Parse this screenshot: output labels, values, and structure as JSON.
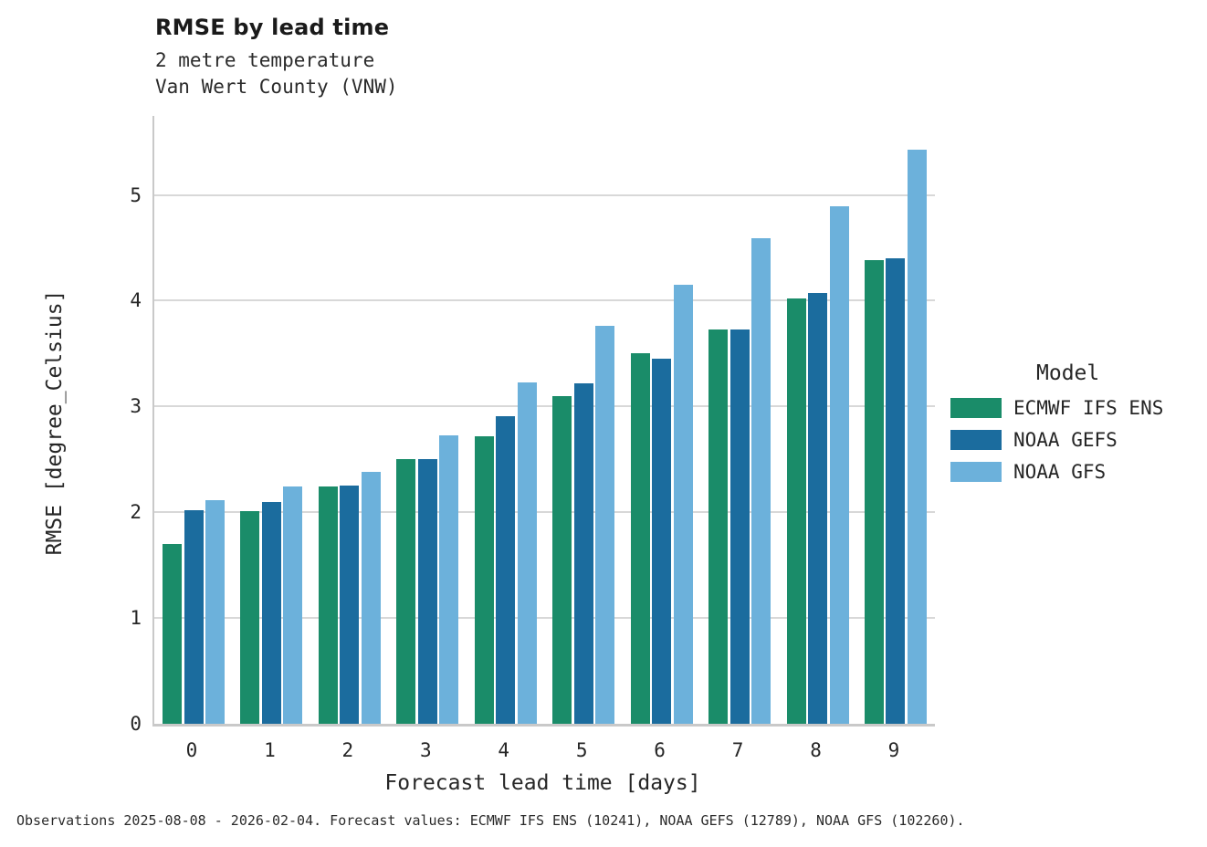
{
  "header": {
    "title": "RMSE by lead time",
    "subtitle_line1": "2 metre temperature",
    "subtitle_line2": "Van Wert County (VNW)"
  },
  "caption": "Observations 2025-08-08 - 2026-02-04. Forecast values: ECMWF IFS ENS (10241), NOAA GEFS (12789), NOAA GFS (102260).",
  "legend": {
    "title": "Model"
  },
  "chart_data": {
    "type": "bar",
    "title": "RMSE by lead time",
    "subtitle": "2 metre temperature — Van Wert County (VNW)",
    "xlabel": "Forecast lead time [days]",
    "ylabel": "RMSE [degree_Celsius]",
    "categories": [
      0,
      1,
      2,
      3,
      4,
      5,
      6,
      7,
      8,
      9
    ],
    "yticks": [
      0,
      1,
      2,
      3,
      4,
      5
    ],
    "ylim": [
      0,
      5.75
    ],
    "grid": true,
    "legend_position": "right",
    "series": [
      {
        "name": "ECMWF IFS ENS",
        "color": "#1a8c69",
        "values": [
          1.7,
          2.01,
          2.24,
          2.5,
          2.72,
          3.1,
          3.5,
          3.73,
          4.02,
          4.38
        ]
      },
      {
        "name": "NOAA GEFS",
        "color": "#1b6c9e",
        "values": [
          2.02,
          2.1,
          2.25,
          2.5,
          2.91,
          3.22,
          3.45,
          3.73,
          4.07,
          4.4
        ]
      },
      {
        "name": "NOAA GFS",
        "color": "#6cb1db",
        "values": [
          2.11,
          2.24,
          2.38,
          2.73,
          3.23,
          3.76,
          4.15,
          4.59,
          4.89,
          5.43
        ]
      }
    ]
  }
}
